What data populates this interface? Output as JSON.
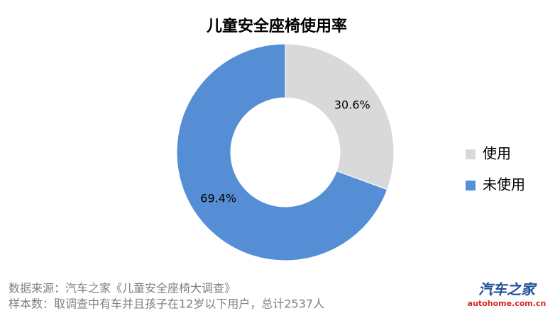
{
  "chart_data": {
    "type": "pie",
    "title": "儿童安全座椅使用率",
    "categories": [
      "使用",
      "未使用"
    ],
    "values": [
      30.6,
      69.4
    ],
    "value_labels": [
      "30.6%",
      "69.4%"
    ],
    "colors": [
      "#d9d9d9",
      "#558ed5"
    ],
    "donut": true,
    "legend": "right"
  },
  "footer": {
    "source": "数据来源：汽车之家《儿童安全座椅大调查》",
    "sample": "样本数：取调查中有车并且孩子在12岁以下用户，总计2537人",
    "logo": "汽车之家",
    "logo_url": "autohome.com.cn"
  }
}
